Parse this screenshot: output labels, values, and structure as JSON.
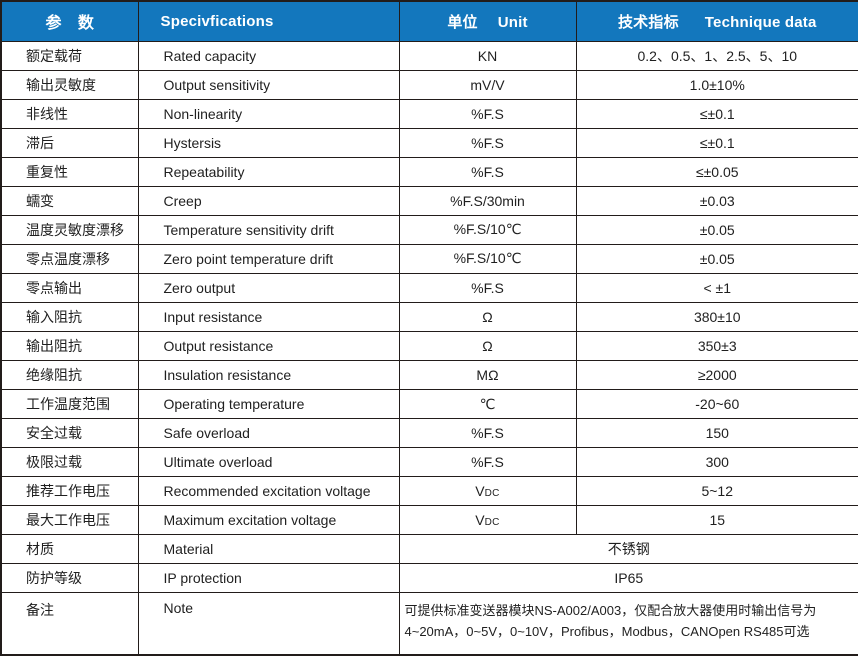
{
  "colors": {
    "header_bg": "#1377BD",
    "header_text": "#FFFFFF",
    "border": "#221C1A",
    "text": "#1F1F1F"
  },
  "table": {
    "header": [
      {
        "zh": "参　数",
        "en": ""
      },
      {
        "zh": "",
        "en": "Specivfications"
      },
      {
        "zh": "单位",
        "en": "Unit"
      },
      {
        "zh": "技术指标",
        "en": "Technique data"
      }
    ],
    "rows": [
      {
        "zh": "额定载荷",
        "en": "Rated capacity",
        "unit": "KN",
        "value": "0.2、0.5、1、2.5、5、10"
      },
      {
        "zh": "输出灵敏度",
        "en": "Output sensitivity",
        "unit": "mV/V",
        "value": "1.0±10%"
      },
      {
        "zh": "非线性",
        "en": "Non-linearity",
        "unit": "%F.S",
        "value": "≤±0.1"
      },
      {
        "zh": "滞后",
        "en": "Hystersis",
        "unit": "%F.S",
        "value": "≤±0.1"
      },
      {
        "zh": "重复性",
        "en": "Repeatability",
        "unit": "%F.S",
        "value": "≤±0.05"
      },
      {
        "zh": "蠕变",
        "en": "Creep",
        "unit": "%F.S/30min",
        "value": "±0.03"
      },
      {
        "zh": "温度灵敏度漂移",
        "en": "Temperature sensitivity drift",
        "unit": "%F.S/10℃",
        "value": "±0.05"
      },
      {
        "zh": "零点温度漂移",
        "en": "Zero point temperature drift",
        "unit": "%F.S/10℃",
        "value": "±0.05"
      },
      {
        "zh": "零点输出",
        "en": "Zero output",
        "unit": "%F.S",
        "value": "< ±1"
      },
      {
        "zh": "输入阻抗",
        "en": "Input resistance",
        "unit": "Ω",
        "value": "380±10"
      },
      {
        "zh": "输出阻抗",
        "en": "Output resistance",
        "unit": "Ω",
        "value": "350±3"
      },
      {
        "zh": "绝缘阻抗",
        "en": "Insulation resistance",
        "unit": "MΩ",
        "value": "≥2000"
      },
      {
        "zh": "工作温度范围",
        "en": "Operating temperature",
        "unit": "℃",
        "value": "-20~60"
      },
      {
        "zh": "安全过载",
        "en": "Safe overload",
        "unit": "%F.S",
        "value": "150"
      },
      {
        "zh": "极限过载",
        "en": "Ultimate overload",
        "unit": "%F.S",
        "value": "300"
      },
      {
        "zh": "推荐工作电压",
        "en": "Recommended excitation voltage",
        "unit": "VDC",
        "unit_sub": true,
        "value": "5~12"
      },
      {
        "zh": "最大工作电压",
        "en": "Maximum excitation voltage",
        "unit": "VDC",
        "unit_sub": true,
        "value": "15"
      },
      {
        "zh": "材质",
        "en": "Material",
        "merged": true,
        "value": "不锈钢"
      },
      {
        "zh": "防护等级",
        "en": "IP protection",
        "merged": true,
        "value": "IP65"
      },
      {
        "zh": "备注",
        "en": "Note",
        "merged": true,
        "note": true,
        "value_lines": [
          "可提供标准变送器模块NS-A002/A003，仅配合放大器使用时输出信号为",
          "4~20mA，0~5V，0~10V，Profibus，Modbus，CANOpen RS485可选"
        ]
      }
    ]
  }
}
